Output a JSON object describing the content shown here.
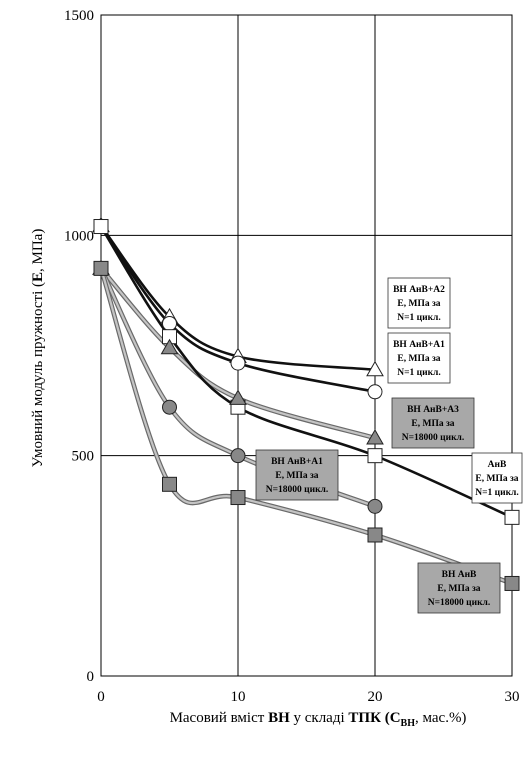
{
  "chart_data": {
    "type": "line",
    "xlabel": {
      "pre": "Масовий вміст ",
      "b1": "ВН",
      "mid": " у складі ",
      "b2": "ТПК",
      "post1": " (C",
      "sub": "ВН",
      "post2": ", мас.%)"
    },
    "ylabel": {
      "pre": "Умовний модуль пружності (",
      "b": "E",
      "post": ", МПа)"
    },
    "xlim": [
      0,
      30
    ],
    "ylim": [
      0,
      1500
    ],
    "xticks": [
      "0",
      "10",
      "20",
      "30"
    ],
    "yticks": [
      "0",
      "500",
      "1000",
      "1500"
    ],
    "grid": true,
    "series": [
      {
        "name": "ВН АнВ+А2 E, МПа за N=1 цикл.",
        "marker": "triangle",
        "fill": "#ffffff",
        "line": "#111111",
        "x": [
          0,
          5,
          10,
          20
        ],
        "y": [
          1022,
          815,
          725,
          695
        ]
      },
      {
        "name": "ВН АнВ+А1 E, МПа за N=1 цикл.",
        "marker": "circle",
        "fill": "#ffffff",
        "line": "#111111",
        "x": [
          0,
          5,
          10,
          20
        ],
        "y": [
          1020,
          800,
          710,
          645
        ]
      },
      {
        "name": "АнВ E, МПа за N=1 цикл.",
        "marker": "square",
        "fill": "#ffffff",
        "line": "#111111",
        "x": [
          0,
          5,
          10,
          20,
          30
        ],
        "y": [
          1020,
          770,
          610,
          500,
          360
        ]
      },
      {
        "name": "ВН АнВ+А3 E, МПа за N=18000 цикл.",
        "marker": "triangle",
        "fill": "#888888",
        "line": "#aaaaaa",
        "x": [
          0,
          5,
          10,
          20
        ],
        "y": [
          925,
          745,
          630,
          540
        ]
      },
      {
        "name": "ВН АнВ+А1 E, МПа за N=18000 цикл.",
        "marker": "circle",
        "fill": "#888888",
        "line": "#aaaaaa",
        "x": [
          0,
          5,
          10,
          20
        ],
        "y": [
          925,
          610,
          500,
          385
        ]
      },
      {
        "name": "ВН АнВ E, МПа за N=18000 цикл.",
        "marker": "square",
        "fill": "#888888",
        "line": "#aaaaaa",
        "x": [
          0,
          5,
          10,
          20,
          30
        ],
        "y": [
          925,
          435,
          405,
          320,
          210
        ]
      }
    ],
    "annotations": [
      {
        "lines": [
          "ВН АнВ+А2",
          "E, МПа за",
          "N=1 цикл."
        ],
        "shaded": false
      },
      {
        "lines": [
          "ВН АнВ+А1",
          "E, МПа за",
          "N=1 цикл."
        ],
        "shaded": false
      },
      {
        "lines": [
          "ВН АнВ+А3",
          "E, МПа за",
          "N=18000 цикл."
        ],
        "shaded": true
      },
      {
        "lines": [
          "ВН АнВ+А1",
          "E, МПа за",
          "N=18000 цикл."
        ],
        "shaded": true
      },
      {
        "lines": [
          "АнВ",
          "E, МПа за",
          "N=1 цикл."
        ],
        "shaded": false
      },
      {
        "lines": [
          "ВН АнВ",
          "E, МПа за",
          "N=18000 цикл."
        ],
        "shaded": true
      }
    ]
  }
}
